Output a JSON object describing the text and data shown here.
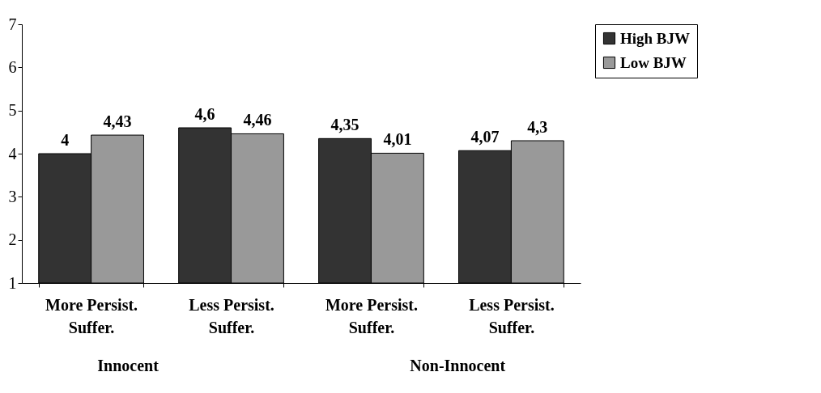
{
  "chart_data": {
    "type": "bar",
    "categories": [
      "More Persist.\nSuffer.",
      "Less Persist.\nSuffer.",
      "More Persist.\nSuffer.",
      "Less Persist.\nSuffer."
    ],
    "series": [
      {
        "name": "High BJW",
        "color": "#333333",
        "values": [
          4,
          4.6,
          4.35,
          4.07
        ],
        "value_labels": [
          "4",
          "4,6",
          "4,35",
          "4,07"
        ]
      },
      {
        "name": "Low BJW",
        "color": "#999999",
        "values": [
          4.43,
          4.46,
          4.01,
          4.3
        ],
        "value_labels": [
          "4,43",
          "4,46",
          "4,01",
          "4,3"
        ]
      }
    ],
    "ylim": [
      1,
      7
    ],
    "yticks": [
      1,
      2,
      3,
      4,
      5,
      6,
      7
    ],
    "annotations": [
      "Innocent",
      "Non-Innocent"
    ],
    "grid": false,
    "legend": "right"
  }
}
